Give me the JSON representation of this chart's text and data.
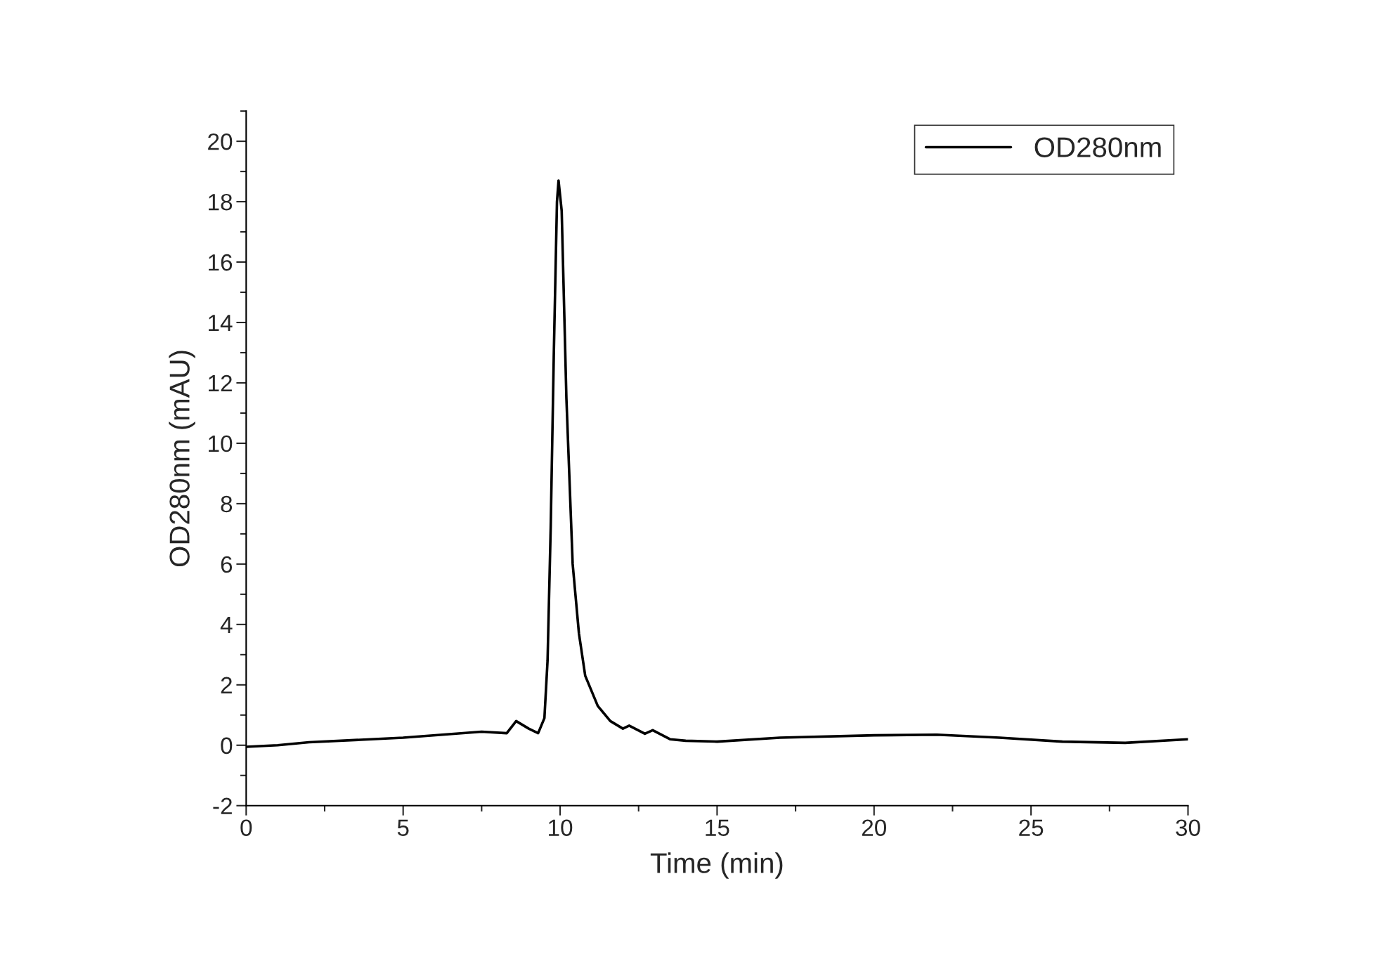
{
  "chart_data": {
    "type": "line",
    "xlabel": "Time (min)",
    "ylabel": "OD280nm (mAU)",
    "series": [
      {
        "name": "OD280nm",
        "color": "#000000",
        "x": [
          0,
          1,
          2,
          5,
          7.5,
          8.3,
          8.6,
          9.0,
          9.3,
          9.5,
          9.6,
          9.7,
          9.8,
          9.9,
          9.95,
          10.05,
          10.2,
          10.4,
          10.6,
          10.8,
          11.2,
          11.6,
          12.0,
          12.2,
          12.7,
          12.95,
          13.5,
          14,
          15,
          17,
          20,
          22,
          24,
          26,
          28,
          30
        ],
        "values": [
          -0.05,
          0,
          0.1,
          0.25,
          0.45,
          0.4,
          0.8,
          0.55,
          0.4,
          0.9,
          2.8,
          7.2,
          13,
          18,
          18.7,
          17.7,
          11.5,
          6,
          3.7,
          2.3,
          1.3,
          0.8,
          0.55,
          0.65,
          0.38,
          0.5,
          0.2,
          0.15,
          0.12,
          0.25,
          0.33,
          0.35,
          0.25,
          0.12,
          0.08,
          0.2
        ]
      }
    ],
    "xlim": [
      0,
      30
    ],
    "xticks": [
      0,
      5,
      10,
      15,
      20,
      25,
      30
    ],
    "ylim": [
      -2,
      21
    ],
    "yticks": [
      -2,
      0,
      2,
      4,
      6,
      8,
      10,
      12,
      14,
      16,
      18,
      20
    ],
    "legend": "top right",
    "grid": false,
    "line_style": "solid",
    "marker": "none"
  }
}
